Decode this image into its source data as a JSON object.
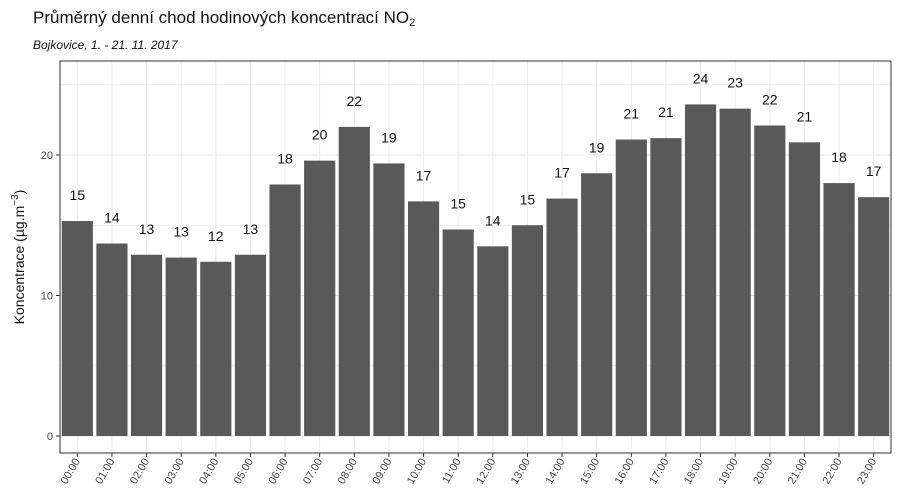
{
  "chart_data": {
    "type": "bar",
    "title": "Průměrný denní chod hodinových koncentrací NO",
    "title_subscript": "2",
    "subtitle": "Bojkovice, 1. - 21. 11. 2017",
    "ylabel": "Koncentrace  (µg.m",
    "ylabel_superscript": "−3",
    "ylabel_close": ")",
    "xlabel": "",
    "ylim": [
      0,
      26
    ],
    "yticks": [
      0,
      10,
      20
    ],
    "grid": true,
    "bar_color": "#595959",
    "categories": [
      "00:00",
      "01:00",
      "02:00",
      "03:00",
      "04:00",
      "05:00",
      "06:00",
      "07:00",
      "08:00",
      "09:00",
      "10:00",
      "11:00",
      "12:00",
      "13:00",
      "14:00",
      "15:00",
      "16:00",
      "17:00",
      "18:00",
      "19:00",
      "20:00",
      "21:00",
      "22:00",
      "23:00"
    ],
    "values": [
      15.3,
      13.7,
      12.9,
      12.7,
      12.4,
      12.9,
      17.9,
      19.6,
      22.0,
      19.4,
      16.7,
      14.7,
      13.5,
      15.0,
      16.9,
      18.7,
      21.1,
      21.2,
      23.6,
      23.3,
      22.1,
      20.9,
      18.0,
      17.0
    ],
    "labels": [
      "15",
      "14",
      "13",
      "13",
      "12",
      "13",
      "18",
      "20",
      "22",
      "19",
      "17",
      "15",
      "14",
      "15",
      "17",
      "19",
      "21",
      "21",
      "24",
      "23",
      "22",
      "21",
      "18",
      "17"
    ]
  }
}
